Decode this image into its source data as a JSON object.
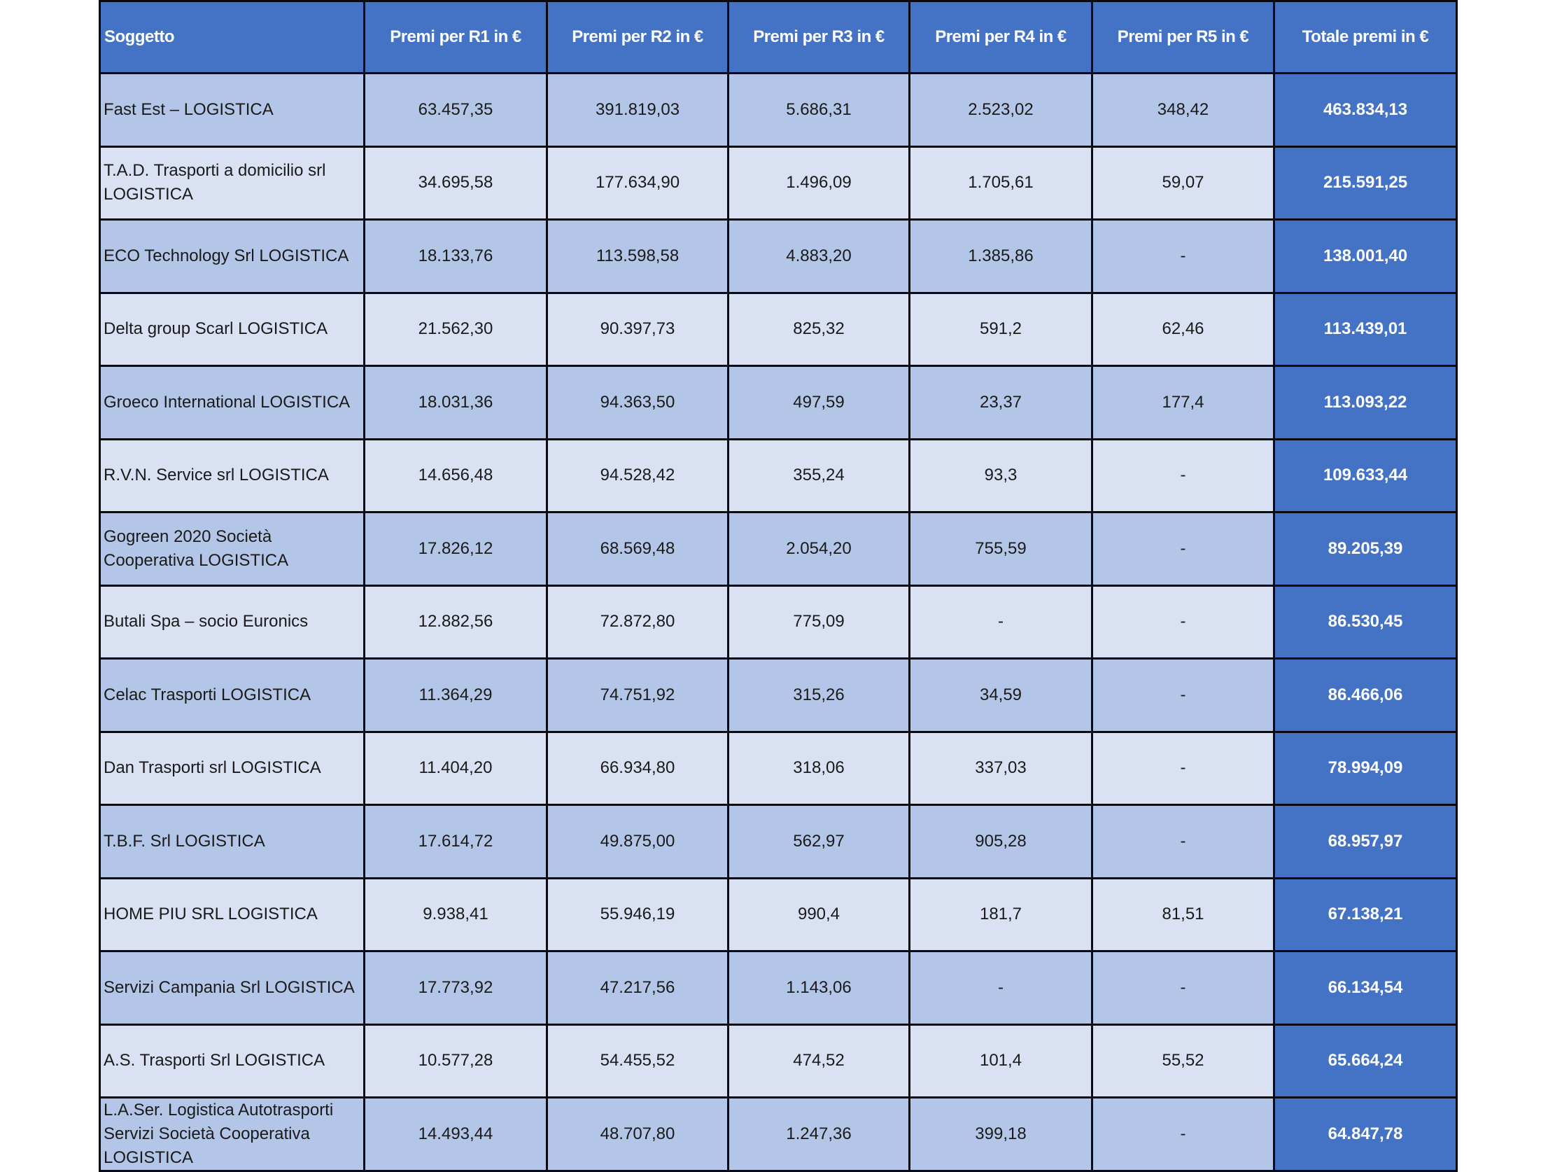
{
  "table": {
    "headers": [
      "Soggetto",
      "Premi per R1 in €",
      "Premi per R2 in €",
      "Premi per R3 in €",
      "Premi per R4 in €",
      "Premi per R5 in €",
      "Totale premi in €"
    ],
    "rows": [
      {
        "soggetto": "Fast Est – LOGISTICA",
        "r1": "63.457,35",
        "r2": "391.819,03",
        "r3": "5.686,31",
        "r4": "2.523,02",
        "r5": "348,42",
        "totale": "463.834,13"
      },
      {
        "soggetto": "T.A.D. Trasporti a domicilio srl LOGISTICA",
        "r1": "34.695,58",
        "r2": "177.634,90",
        "r3": "1.496,09",
        "r4": "1.705,61",
        "r5": "59,07",
        "totale": "215.591,25"
      },
      {
        "soggetto": "ECO Technology Srl LOGISTICA",
        "r1": "18.133,76",
        "r2": "113.598,58",
        "r3": "4.883,20",
        "r4": "1.385,86",
        "r5": "-",
        "totale": "138.001,40"
      },
      {
        "soggetto": "Delta group Scarl LOGISTICA",
        "r1": "21.562,30",
        "r2": "90.397,73",
        "r3": "825,32",
        "r4": "591,2",
        "r5": "62,46",
        "totale": "113.439,01"
      },
      {
        "soggetto": "Groeco International LOGISTICA",
        "r1": "18.031,36",
        "r2": "94.363,50",
        "r3": "497,59",
        "r4": "23,37",
        "r5": "177,4",
        "totale": "113.093,22"
      },
      {
        "soggetto": "R.V.N. Service srl LOGISTICA",
        "r1": "14.656,48",
        "r2": "94.528,42",
        "r3": "355,24",
        "r4": "93,3",
        "r5": "-",
        "totale": "109.633,44"
      },
      {
        "soggetto": "Gogreen 2020 Società Cooperativa LOGISTICA",
        "r1": "17.826,12",
        "r2": "68.569,48",
        "r3": "2.054,20",
        "r4": "755,59",
        "r5": "-",
        "totale": "89.205,39"
      },
      {
        "soggetto": "Butali Spa – socio Euronics",
        "r1": "12.882,56",
        "r2": "72.872,80",
        "r3": "775,09",
        "r4": "-",
        "r5": "-",
        "totale": "86.530,45"
      },
      {
        "soggetto": "Celac Trasporti LOGISTICA",
        "r1": "11.364,29",
        "r2": "74.751,92",
        "r3": "315,26",
        "r4": "34,59",
        "r5": "-",
        "totale": "86.466,06"
      },
      {
        "soggetto": "Dan Trasporti srl LOGISTICA",
        "r1": "11.404,20",
        "r2": "66.934,80",
        "r3": "318,06",
        "r4": "337,03",
        "r5": "-",
        "totale": "78.994,09"
      },
      {
        "soggetto": "T.B.F. Srl LOGISTICA",
        "r1": "17.614,72",
        "r2": "49.875,00",
        "r3": "562,97",
        "r4": "905,28",
        "r5": "-",
        "totale": "68.957,97"
      },
      {
        "soggetto": "HOME PIU SRL LOGISTICA",
        "r1": "9.938,41",
        "r2": "55.946,19",
        "r3": "990,4",
        "r4": "181,7",
        "r5": "81,51",
        "totale": "67.138,21"
      },
      {
        "soggetto": "Servizi Campania Srl LOGISTICA",
        "r1": "17.773,92",
        "r2": "47.217,56",
        "r3": "1.143,06",
        "r4": "-",
        "r5": "-",
        "totale": "66.134,54"
      },
      {
        "soggetto": "A.S. Trasporti Srl LOGISTICA",
        "r1": "10.577,28",
        "r2": "54.455,52",
        "r3": "474,52",
        "r4": "101,4",
        "r5": "55,52",
        "totale": "65.664,24"
      },
      {
        "soggetto": "L.A.Ser. Logistica Autotrasporti Servizi Società Cooperativa LOGISTICA",
        "r1": "14.493,44",
        "r2": "48.707,80",
        "r3": "1.247,36",
        "r4": "399,18",
        "r5": "-",
        "totale": "64.847,78"
      }
    ]
  },
  "colors": {
    "header_bg": "#4472C4",
    "total_bg": "#4472C4",
    "row_dark": "#B4C6E7",
    "row_light": "#DAE1F2",
    "border": "#0a0a14"
  }
}
